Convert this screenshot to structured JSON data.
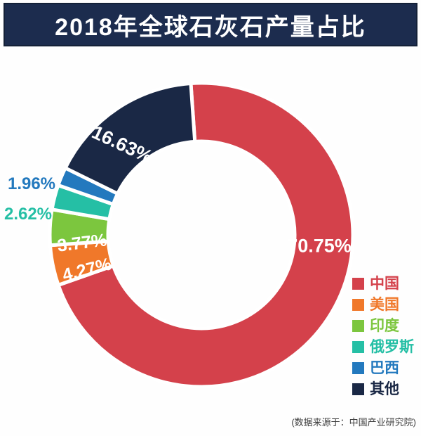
{
  "chart_data": {
    "type": "pie",
    "subtype": "donut",
    "title": "2018年全球石灰石产量占比",
    "source_note": "(数据来源于：中国产业研究院)",
    "unit": "%",
    "legend_position": "right",
    "start_angle_deg": -4,
    "direction": "clockwise",
    "colors": {
      "banner_bg": "#1c2c4e",
      "banner_text": "#ffffff",
      "inside_label": "#ffffff",
      "background": "#fefefe"
    },
    "slices": [
      {
        "id": "china",
        "name": "中国",
        "value": 70.75,
        "label": "70.75%",
        "color": "#d4414b",
        "label_inside": true
      },
      {
        "id": "usa",
        "name": "美国",
        "value": 4.27,
        "label": "4.27%",
        "color": "#f0782a",
        "label_inside": true
      },
      {
        "id": "india",
        "name": "印度",
        "value": 3.77,
        "label": "3.77%",
        "color": "#7cc63e",
        "label_inside": true
      },
      {
        "id": "russia",
        "name": "俄罗斯",
        "value": 2.62,
        "label": "2.62%",
        "color": "#25bfa5",
        "label_inside": false
      },
      {
        "id": "brazil",
        "name": "巴西",
        "value": 1.96,
        "label": "1.96%",
        "color": "#2379be",
        "label_inside": false
      },
      {
        "id": "other",
        "name": "其他",
        "value": 16.63,
        "label": "16.63%",
        "color": "#1a2845",
        "label_inside": true
      }
    ]
  }
}
